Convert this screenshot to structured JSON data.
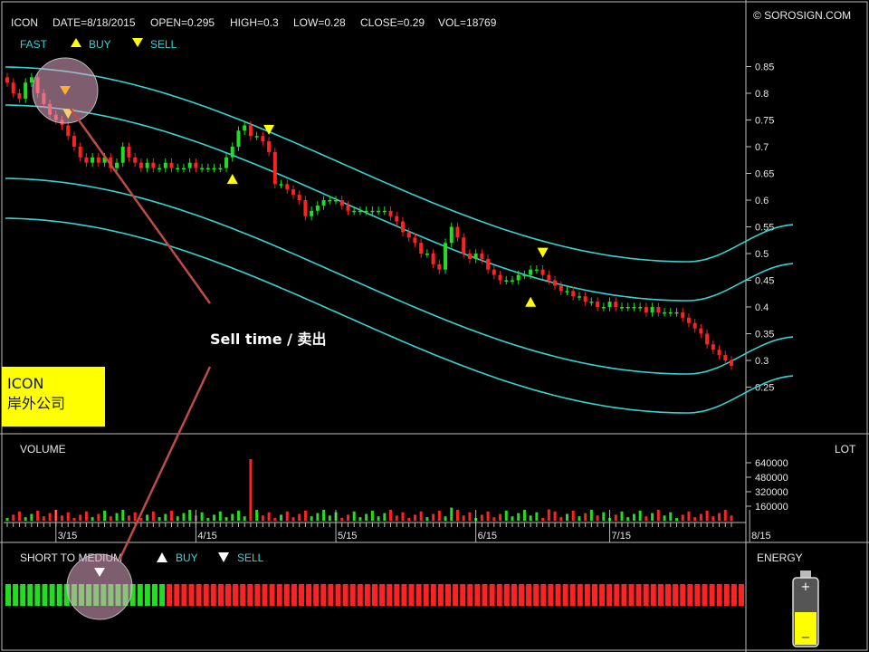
{
  "header": {
    "symbol": "ICON",
    "date": "DATE=8/18/2015",
    "open": "OPEN=0.295",
    "high": "HIGH=0.3",
    "low": "LOW=0.28",
    "close": "CLOSE=0.29",
    "vol": "VOL=18769",
    "copyright": "© SOROSIGN.COM"
  },
  "legend": {
    "fast": "FAST",
    "buy": "BUY",
    "sell": "SELL"
  },
  "volume_panel": {
    "label": "VOLUME",
    "unit": "LOT"
  },
  "energy_panel": {
    "title": "SHORT TO MEDIUM",
    "buy": "BUY",
    "sell": "SELL",
    "energy_label": "ENERGY",
    "energy_level": 0.5,
    "green_bars": 22,
    "red_bars": 79
  },
  "annotations": {
    "sell_note": "Sell time / 卖出",
    "company_name": "ICON",
    "company_desc": "岸外公司"
  },
  "colors": {
    "up": "#22dd22",
    "down": "#ff2222",
    "channel": "#35d4d4",
    "signal": "#ffff00",
    "annotation": "#c04a4a"
  },
  "chart_data": [
    {
      "type": "candlestick",
      "title": "",
      "y_ticks": [
        0.85,
        0.8,
        0.75,
        0.7,
        0.65,
        0.6,
        0.55,
        0.5,
        0.45,
        0.4,
        0.35,
        0.3,
        0.25
      ],
      "ylim": [
        0.2,
        0.9
      ],
      "x_ticks": [
        "3/15",
        "4/15",
        "5/15",
        "6/15",
        "7/15",
        "8/15"
      ],
      "x_tick_index": [
        8,
        31,
        54,
        77,
        99,
        122
      ],
      "closes": [
        0.82,
        0.8,
        0.79,
        0.82,
        0.83,
        0.8,
        0.78,
        0.76,
        0.75,
        0.74,
        0.72,
        0.7,
        0.68,
        0.67,
        0.68,
        0.67,
        0.68,
        0.66,
        0.67,
        0.7,
        0.68,
        0.67,
        0.66,
        0.67,
        0.66,
        0.66,
        0.67,
        0.66,
        0.66,
        0.66,
        0.67,
        0.66,
        0.66,
        0.66,
        0.66,
        0.66,
        0.68,
        0.7,
        0.73,
        0.74,
        0.72,
        0.72,
        0.71,
        0.69,
        0.63,
        0.63,
        0.62,
        0.61,
        0.6,
        0.57,
        0.58,
        0.59,
        0.6,
        0.6,
        0.6,
        0.59,
        0.58,
        0.58,
        0.58,
        0.58,
        0.58,
        0.58,
        0.58,
        0.57,
        0.56,
        0.54,
        0.53,
        0.52,
        0.5,
        0.5,
        0.48,
        0.47,
        0.52,
        0.55,
        0.53,
        0.5,
        0.49,
        0.5,
        0.49,
        0.47,
        0.46,
        0.45,
        0.45,
        0.45,
        0.46,
        0.46,
        0.47,
        0.47,
        0.46,
        0.45,
        0.44,
        0.43,
        0.43,
        0.42,
        0.42,
        0.41,
        0.41,
        0.4,
        0.4,
        0.41,
        0.4,
        0.4,
        0.4,
        0.4,
        0.4,
        0.39,
        0.4,
        0.39,
        0.39,
        0.39,
        0.39,
        0.38,
        0.37,
        0.36,
        0.35,
        0.33,
        0.32,
        0.31,
        0.3,
        0.29
      ],
      "signals": [
        {
          "type": "sell",
          "index": 10
        },
        {
          "type": "sell",
          "index": 43
        },
        {
          "type": "buy",
          "index": 37
        },
        {
          "type": "sell",
          "index": 88
        },
        {
          "type": "buy",
          "index": 86
        }
      ]
    },
    {
      "type": "bar",
      "title": "",
      "y_ticks": [
        640000,
        480000,
        320000,
        160000
      ],
      "ylim": [
        0,
        800000
      ],
      "spike_value": 680000
    }
  ]
}
